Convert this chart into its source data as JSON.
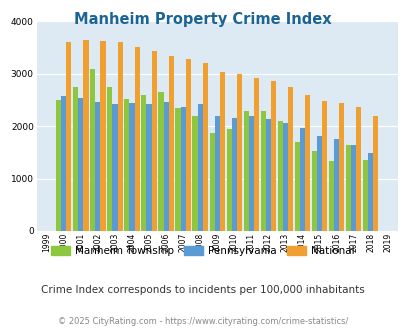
{
  "title": "Manheim Property Crime Index",
  "title_color": "#1a6496",
  "subtitle": "Crime Index corresponds to incidents per 100,000 inhabitants",
  "footer": "© 2025 CityRating.com - https://www.cityrating.com/crime-statistics/",
  "years": [
    1999,
    2000,
    2001,
    2002,
    2003,
    2004,
    2005,
    2006,
    2007,
    2008,
    2009,
    2010,
    2011,
    2012,
    2013,
    2014,
    2015,
    2016,
    2017,
    2018,
    2019
  ],
  "manheim": [
    null,
    2500,
    2750,
    3100,
    2750,
    2520,
    2600,
    2650,
    2350,
    2200,
    1870,
    1950,
    2300,
    2300,
    2100,
    1700,
    1520,
    1340,
    1650,
    1360,
    null
  ],
  "pennsylvania": [
    null,
    2570,
    2540,
    2460,
    2430,
    2440,
    2430,
    2460,
    2360,
    2430,
    2200,
    2150,
    2200,
    2140,
    2060,
    1960,
    1810,
    1760,
    1640,
    1490,
    null
  ],
  "national": [
    null,
    3610,
    3650,
    3620,
    3600,
    3520,
    3430,
    3340,
    3290,
    3210,
    3040,
    2990,
    2930,
    2860,
    2740,
    2600,
    2490,
    2450,
    2370,
    2190,
    null
  ],
  "bar_colors": {
    "manheim": "#8dc63f",
    "pennsylvania": "#5b9bd5",
    "national": "#f0a030"
  },
  "bg_color": "#ddeaf3",
  "ylim": [
    0,
    4000
  ],
  "yticks": [
    0,
    1000,
    2000,
    3000,
    4000
  ],
  "grid_color": "#ffffff",
  "legend_labels": [
    "Manheim Township",
    "Pennsylvania",
    "National"
  ],
  "subtitle_color": "#333333",
  "footer_color": "#888888",
  "subtitle_fontsize": 7.5,
  "footer_fontsize": 6.0,
  "title_fontsize": 10.5
}
